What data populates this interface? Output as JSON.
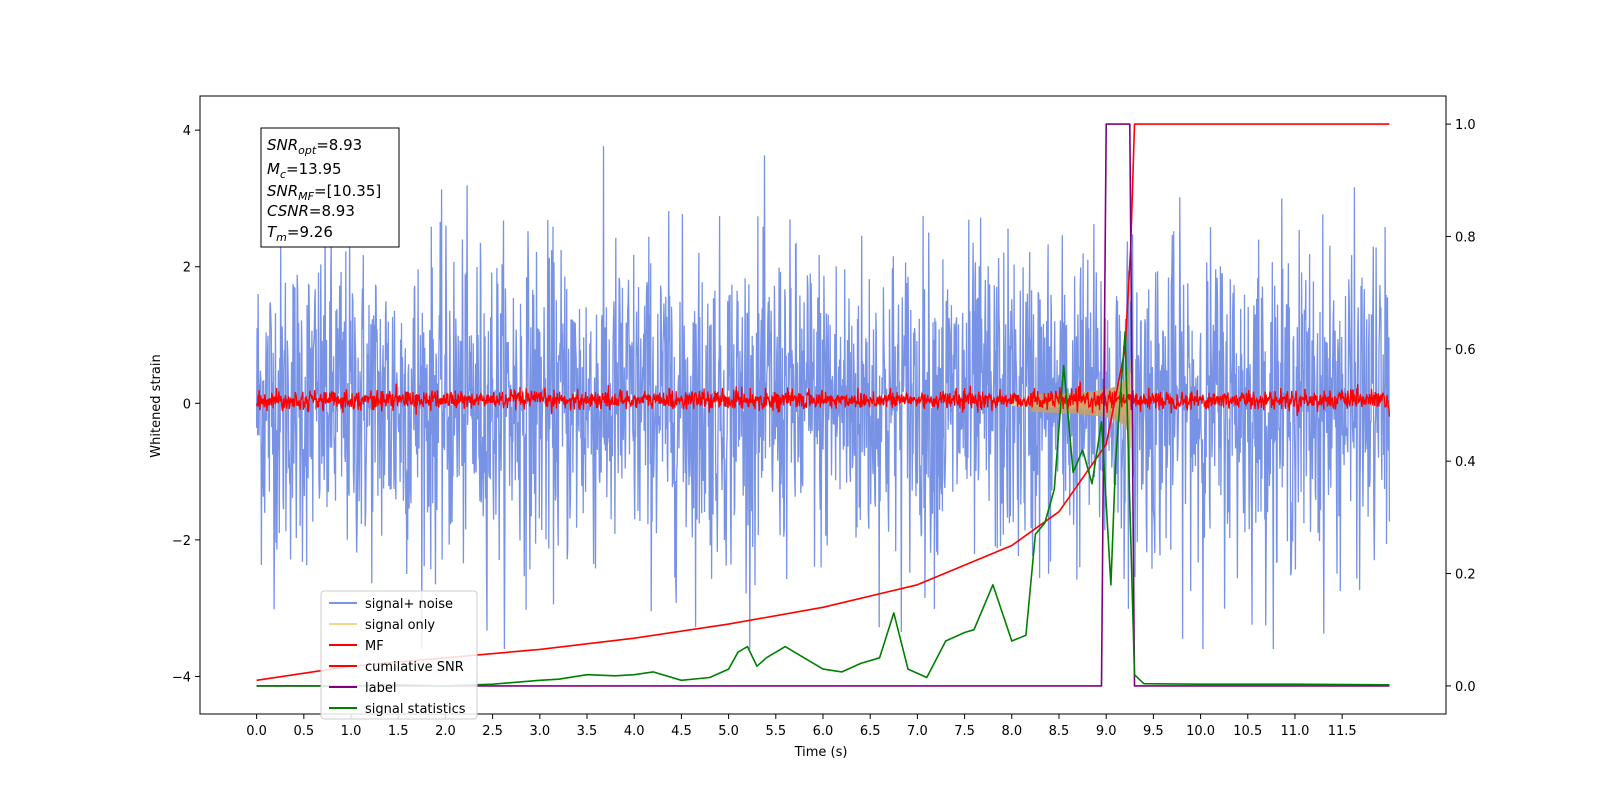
{
  "chart_data": {
    "type": "line",
    "xlabel": "Time (s)",
    "ylabel": "Whitened strain",
    "x_range": [
      -0.6,
      12.6
    ],
    "y_left_range": [
      -4.55,
      4.5
    ],
    "y_right_range": [
      -0.05,
      1.05
    ],
    "x_ticks": [
      "0.0",
      "0.5",
      "1.0",
      "1.5",
      "2.0",
      "2.5",
      "3.0",
      "3.5",
      "4.0",
      "4.5",
      "5.0",
      "5.5",
      "6.0",
      "6.5",
      "7.0",
      "7.5",
      "8.0",
      "8.5",
      "9.0",
      "9.5",
      "10.0",
      "10.5",
      "11.0",
      "11.5"
    ],
    "y_left_ticks": [
      "4",
      "2",
      "0",
      "−2",
      "−4"
    ],
    "y_right_ticks": [
      "1.0",
      "0.8",
      "0.6",
      "0.4",
      "0.2",
      "0.0"
    ],
    "grid": false,
    "legend_position": "lower-left",
    "legend": [
      {
        "label": "signal+ noise",
        "color": "#7893e6"
      },
      {
        "label": "signal only",
        "color": "#f7d48a"
      },
      {
        "label": "MF",
        "color": "#ff0000"
      },
      {
        "label": "cumilative SNR",
        "color": "#ff0000"
      },
      {
        "label": "label",
        "color": "#800080"
      },
      {
        "label": "signal statistics",
        "color": "#008000"
      }
    ],
    "info_box": {
      "snr_opt": {
        "main": "SNR",
        "sub": "opt",
        "value": "=8.93"
      },
      "mc": {
        "main": "M",
        "sub": "c",
        "value": "=13.95"
      },
      "snr_mf": {
        "main": "SNR",
        "sub": "MF",
        "value": "=[10.35]"
      },
      "csnr": {
        "main": "CSNR",
        "sub": "",
        "value": "=8.93"
      },
      "tm": {
        "main": "T",
        "sub": "m",
        "value": "=9.26"
      }
    },
    "series": [
      {
        "name": "signal+ noise",
        "axis": "left",
        "description_range": [
          -3.6,
          4.05
        ],
        "t_range": [
          0.0,
          12.0
        ]
      },
      {
        "name": "signal only",
        "axis": "left",
        "chirp_end": 9.26
      },
      {
        "name": "MF",
        "axis": "left",
        "range": [
          -0.25,
          0.35
        ]
      },
      {
        "name": "cumilative SNR",
        "axis": "right",
        "t": [
          0.0,
          1.0,
          2.0,
          3.0,
          4.0,
          5.0,
          6.0,
          7.0,
          8.0,
          8.5,
          9.0,
          9.2,
          9.26,
          9.3,
          12.0
        ],
        "values": [
          0.01,
          0.035,
          0.05,
          0.065,
          0.085,
          0.11,
          0.14,
          0.18,
          0.25,
          0.31,
          0.43,
          0.6,
          0.78,
          1.0,
          1.0
        ]
      },
      {
        "name": "label",
        "axis": "right",
        "t": [
          0.0,
          8.95,
          9.0,
          9.25,
          9.3,
          12.0
        ],
        "values": [
          0.0,
          0.0,
          1.0,
          1.0,
          0.0,
          0.0
        ]
      },
      {
        "name": "signal statistics",
        "axis": "right",
        "t": [
          0.0,
          0.5,
          1.0,
          1.5,
          2.0,
          2.5,
          3.0,
          3.2,
          3.5,
          3.8,
          4.0,
          4.2,
          4.5,
          4.8,
          5.0,
          5.1,
          5.2,
          5.3,
          5.4,
          5.6,
          5.8,
          6.0,
          6.2,
          6.4,
          6.6,
          6.75,
          6.9,
          7.1,
          7.3,
          7.5,
          7.6,
          7.8,
          8.0,
          8.15,
          8.25,
          8.35,
          8.45,
          8.55,
          8.65,
          8.75,
          8.85,
          8.95,
          9.05,
          9.1,
          9.2,
          9.3,
          9.4,
          10.0,
          11.0,
          12.0
        ],
        "values": [
          0.0,
          0.0,
          0.0,
          0.002,
          0.0,
          0.003,
          0.01,
          0.012,
          0.02,
          0.018,
          0.02,
          0.025,
          0.01,
          0.015,
          0.03,
          0.06,
          0.07,
          0.035,
          0.05,
          0.07,
          0.05,
          0.03,
          0.025,
          0.04,
          0.05,
          0.13,
          0.03,
          0.015,
          0.08,
          0.095,
          0.1,
          0.18,
          0.08,
          0.09,
          0.27,
          0.29,
          0.35,
          0.57,
          0.38,
          0.42,
          0.36,
          0.47,
          0.18,
          0.4,
          0.63,
          0.02,
          0.004,
          0.003,
          0.003,
          0.002
        ]
      }
    ]
  }
}
